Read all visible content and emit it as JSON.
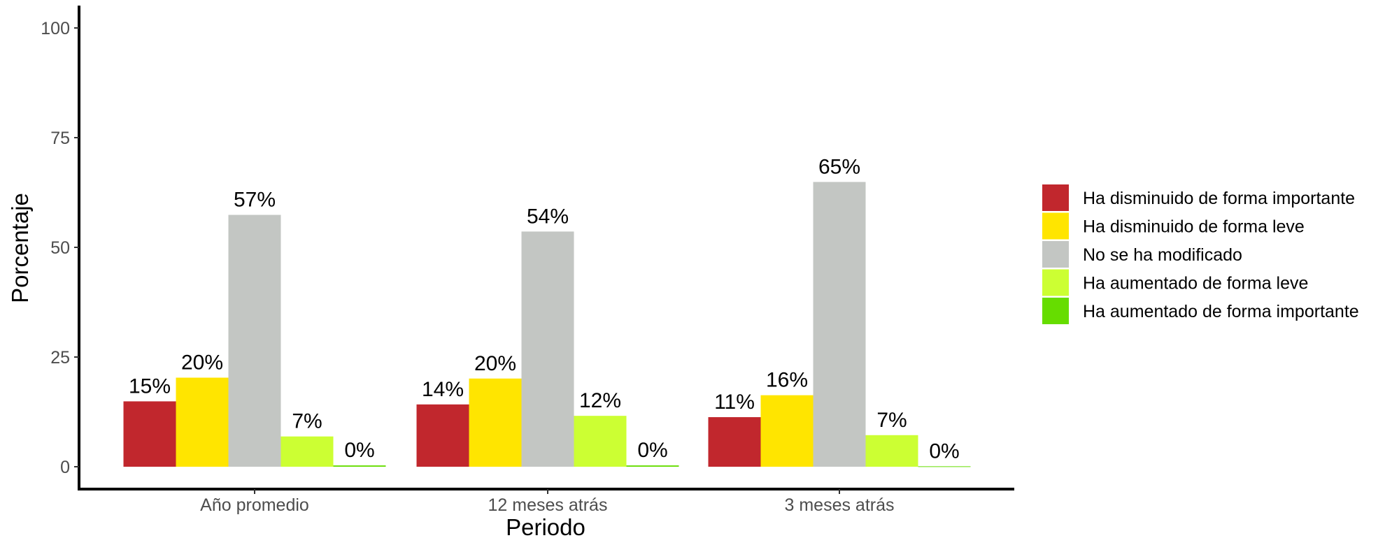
{
  "chart_data": {
    "type": "bar",
    "xlabel": "Periodo",
    "ylabel": "Porcentaje",
    "ylim": [
      0,
      100
    ],
    "yticks": [
      "0",
      "25",
      "50",
      "75",
      "100"
    ],
    "categories": [
      "Año promedio",
      "12 meses atrás",
      "3 meses atrás"
    ],
    "legend_position": "right",
    "grid": false,
    "series": [
      {
        "name": "Ha disminuido de forma importante",
        "color": "#c1272d",
        "values": [
          14.9,
          14.2,
          11.3
        ],
        "labels": [
          "15%",
          "14%",
          "11%"
        ]
      },
      {
        "name": "Ha disminuido de forma leve",
        "color": "#ffe500",
        "values": [
          20.3,
          20.1,
          16.3
        ],
        "labels": [
          "20%",
          "20%",
          "16%"
        ]
      },
      {
        "name": "No se ha modificado",
        "color": "#c3c6c3",
        "values": [
          57.4,
          53.6,
          64.9
        ],
        "labels": [
          "57%",
          "54%",
          "65%"
        ]
      },
      {
        "name": "Ha aumentado de forma leve",
        "color": "#ccff33",
        "values": [
          6.9,
          11.6,
          7.2
        ],
        "labels": [
          "7%",
          "12%",
          "7%"
        ]
      },
      {
        "name": "Ha aumentado de forma importante",
        "color": "#66dd00",
        "values": [
          0.3,
          0.3,
          0.1
        ],
        "labels": [
          "0%",
          "0%",
          "0%"
        ]
      }
    ]
  }
}
